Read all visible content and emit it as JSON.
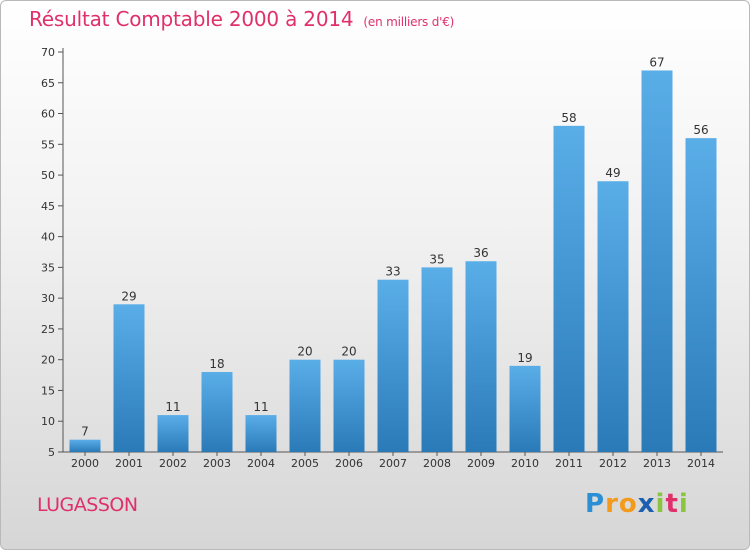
{
  "title": "Résultat Comptable 2000 à 2014",
  "subtitle": "(en milliers d'€)",
  "place": "LUGASSON",
  "brand": {
    "letters": [
      "P",
      "r",
      "o",
      "x",
      "i",
      "t",
      "i"
    ],
    "colors": [
      "#2a8fd4",
      "#f29a1c",
      "#f29a1c",
      "#1c5fb0",
      "#8bc53f",
      "#e0306a",
      "#8bc53f"
    ]
  },
  "colors": {
    "title": "#e0306a",
    "bar_top": "#5aaee8",
    "bar_bottom": "#2a7ab8",
    "axis": "#555555",
    "grid": "#999999",
    "text": "#333333"
  },
  "chart_data": {
    "type": "bar",
    "title": "Résultat Comptable 2000 à 2014",
    "subtitle": "(en milliers d'€)",
    "categories": [
      "2000",
      "2001",
      "2002",
      "2003",
      "2004",
      "2005",
      "2006",
      "2007",
      "2008",
      "2009",
      "2010",
      "2011",
      "2012",
      "2013",
      "2014"
    ],
    "values": [
      7,
      29,
      11,
      18,
      11,
      20,
      20,
      33,
      35,
      36,
      19,
      58,
      49,
      67,
      56
    ],
    "ylim": [
      5,
      70
    ],
    "yticks": [
      5,
      10,
      15,
      20,
      25,
      30,
      35,
      40,
      45,
      50,
      55,
      60,
      65,
      70
    ],
    "xlabel": "",
    "ylabel": "",
    "grid": false,
    "legend": "none"
  }
}
